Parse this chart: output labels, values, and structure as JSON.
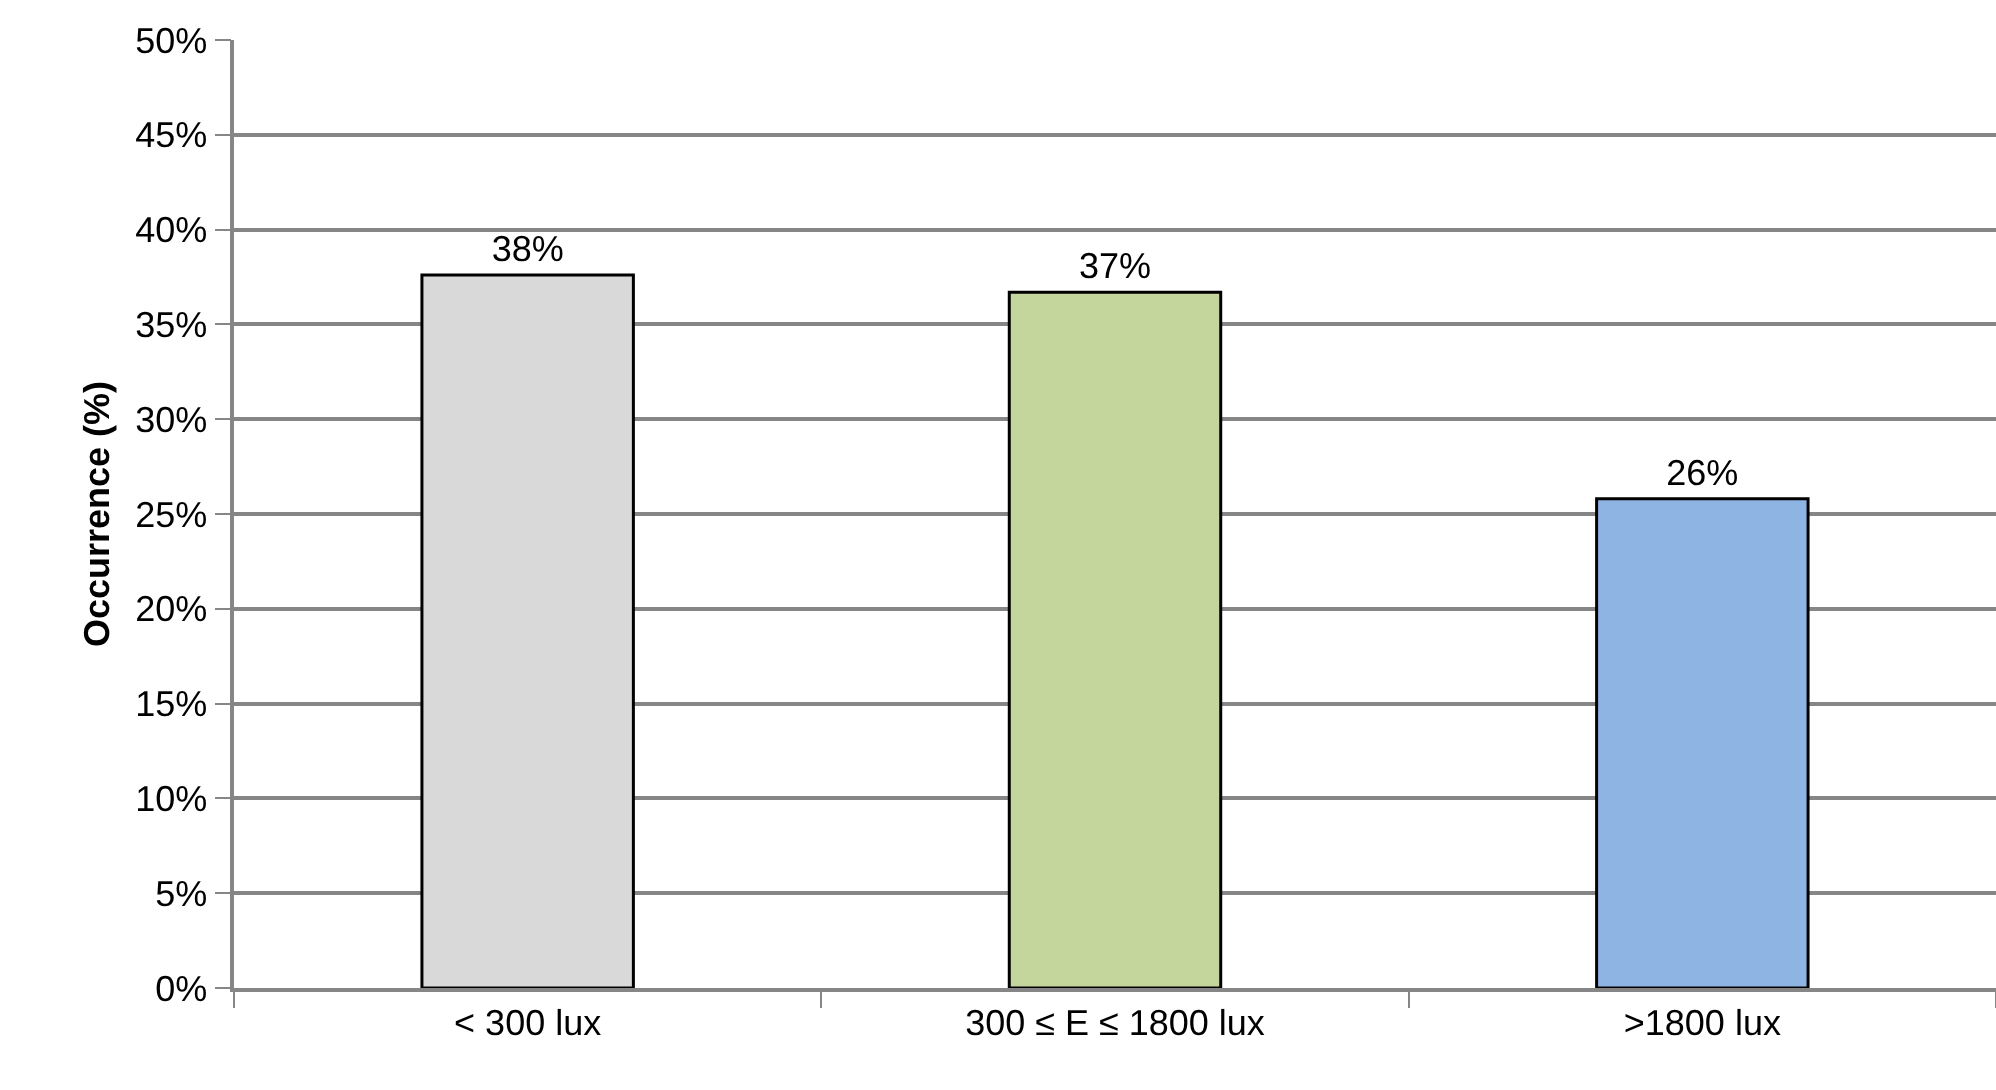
{
  "chart_data": {
    "type": "bar",
    "ylabel": "Occurrence (%)",
    "categories": [
      "< 300 lux",
      "300 ≤ E ≤ 1800 lux",
      ">1800 lux"
    ],
    "values": [
      37.6,
      36.7,
      25.8
    ],
    "value_labels": [
      "38%",
      "37%",
      "26%"
    ],
    "colors": [
      "#d9d9d9",
      "#c4d69b",
      "#8eb4e3"
    ],
    "ylim": [
      0,
      50
    ],
    "yticks": [
      {
        "value": 0,
        "label": "0%"
      },
      {
        "value": 5,
        "label": "5%"
      },
      {
        "value": 10,
        "label": "10%"
      },
      {
        "value": 15,
        "label": "15%"
      },
      {
        "value": 20,
        "label": "20%"
      },
      {
        "value": 25,
        "label": "25%"
      },
      {
        "value": 30,
        "label": "30%"
      },
      {
        "value": 35,
        "label": "35%"
      },
      {
        "value": 40,
        "label": "40%"
      },
      {
        "value": 45,
        "label": "45%"
      },
      {
        "value": 50,
        "label": "50%"
      }
    ],
    "grid": "y"
  }
}
